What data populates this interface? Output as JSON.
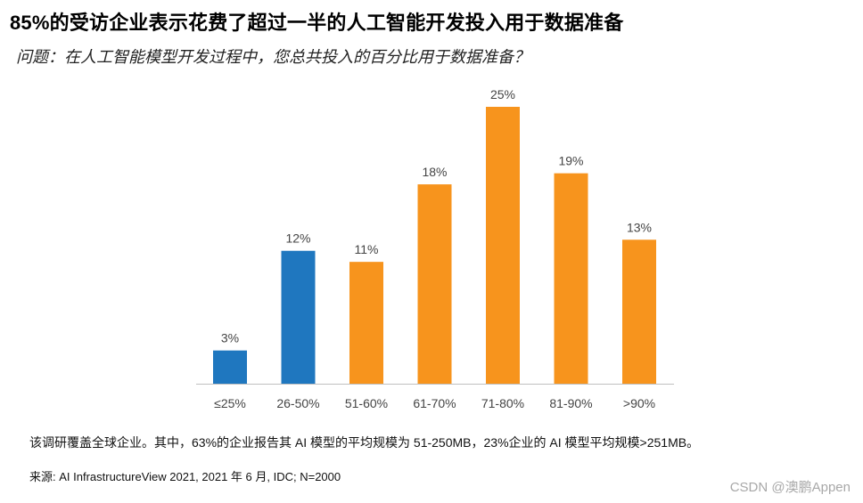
{
  "title": "85%的受访企业表示花费了超过一半的人工智能开发投入用于数据准备",
  "subtitle": "问题：在人工智能模型开发过程中，您总共投入的百分比用于数据准备？",
  "chart_data": {
    "type": "bar",
    "title": "85%的受访企业表示花费了超过一半的人工智能开发投入用于数据准备",
    "xlabel": "",
    "ylabel": "",
    "ylim": [
      0,
      25
    ],
    "categories": [
      "≤25%",
      "26-50%",
      "51-60%",
      "61-70%",
      "71-80%",
      "81-90%",
      ">90%"
    ],
    "values": [
      3,
      12,
      11,
      18,
      25,
      19,
      13
    ],
    "data_labels": [
      "3%",
      "12%",
      "11%",
      "18%",
      "25%",
      "19%",
      "13%"
    ],
    "colors": [
      "#1f77bf",
      "#1f77bf",
      "#f7941d",
      "#f7941d",
      "#f7941d",
      "#f7941d",
      "#f7941d"
    ],
    "grid": false,
    "legend": "none"
  },
  "note": "该调研覆盖全球企业。其中，63%的企业报告其 AI 模型的平均规模为 51-250MB，23%企业的 AI 模型平均规模>251MB。",
  "source": "来源: AI InfrastructureView 2021, 2021 年 6 月, IDC; N=2000",
  "watermark": "CSDN @澳鹏Appen",
  "colors": {
    "blue": "#1f77bf",
    "orange": "#f7941d",
    "axis": "#bfbfbf",
    "label": "#444444"
  }
}
